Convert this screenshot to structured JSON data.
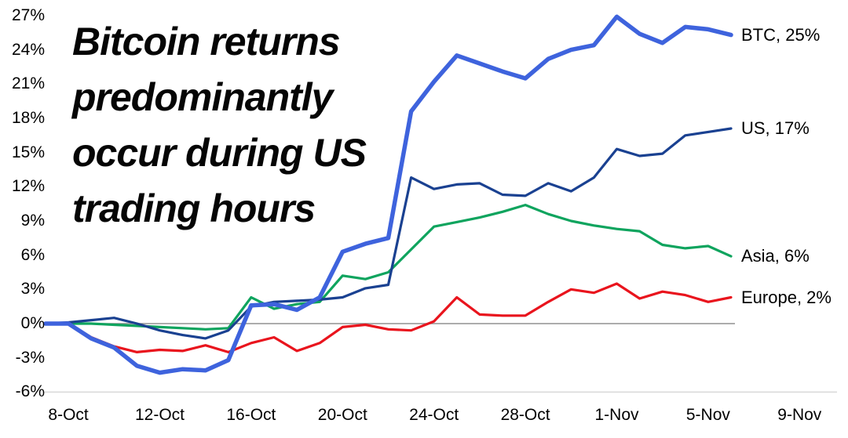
{
  "page": {
    "background": "#ffffff"
  },
  "title": {
    "lines": [
      "Bitcoin returns",
      "predominantly",
      "occur during US",
      "trading hours"
    ],
    "full_text": "Bitcoin returns predominantly occur during US trading hours",
    "color": "#050505"
  },
  "chart_data": {
    "type": "line",
    "title": "Bitcoin returns predominantly occur during US trading hours",
    "xlabel": "",
    "ylabel": "",
    "ylim": [
      -6,
      27
    ],
    "grid": {
      "zero_line": true,
      "bottom_line": true,
      "vertical_gridlines": false
    },
    "legend_position": "right-end-labels",
    "y_tick_labels": [
      "27%",
      "24%",
      "21%",
      "18%",
      "15%",
      "12%",
      "9%",
      "6%",
      "3%",
      "0%",
      "-3%",
      "-6%"
    ],
    "y_tick_values": [
      27,
      24,
      21,
      18,
      15,
      12,
      9,
      6,
      3,
      0,
      -3,
      -6
    ],
    "x_tick_labels": [
      "8-Oct",
      "12-Oct",
      "16-Oct",
      "20-Oct",
      "24-Oct",
      "28-Oct",
      "1-Nov",
      "5-Nov",
      "9-Nov"
    ],
    "x_labels": [
      "7-Oct",
      "8-Oct",
      "9-Oct",
      "10-Oct",
      "11-Oct",
      "12-Oct",
      "13-Oct",
      "14-Oct",
      "15-Oct",
      "16-Oct",
      "17-Oct",
      "18-Oct",
      "19-Oct",
      "20-Oct",
      "21-Oct",
      "22-Oct",
      "23-Oct",
      "24-Oct",
      "25-Oct",
      "26-Oct",
      "27-Oct",
      "28-Oct",
      "29-Oct",
      "30-Oct",
      "31-Oct",
      "1-Nov",
      "2-Nov",
      "3-Nov",
      "4-Nov",
      "5-Nov",
      "6-Nov"
    ],
    "axis_colors": {
      "zero_line": "#909090",
      "bottom_line": "#dcdcdc"
    },
    "series": [
      {
        "name": "BTC",
        "end_label": "BTC, 25%",
        "color": "#3e63dd",
        "stroke_width": 5.5,
        "values": [
          0,
          0,
          -1.3,
          -2.1,
          -3.7,
          -4.3,
          -4.0,
          -4.1,
          -3.2,
          1.6,
          1.7,
          1.2,
          2.3,
          6.3,
          7.0,
          7.5,
          18.6,
          21.2,
          23.5,
          22.8,
          22.1,
          21.5,
          23.2,
          24.0,
          24.4,
          26.9,
          25.4,
          24.6,
          26.0,
          25.8,
          25.3
        ]
      },
      {
        "name": "US",
        "end_label": "US, 17%",
        "color": "#1a4191",
        "stroke_width": 3.2,
        "values": [
          0,
          0.1,
          0.3,
          0.5,
          0,
          -0.6,
          -1.0,
          -1.3,
          -0.6,
          1.5,
          1.9,
          2.0,
          2.1,
          2.3,
          3.1,
          3.4,
          12.8,
          11.8,
          12.2,
          12.3,
          11.3,
          11.2,
          12.3,
          11.6,
          12.8,
          15.3,
          14.7,
          14.9,
          16.5,
          16.8,
          17.1
        ]
      },
      {
        "name": "Asia",
        "end_label": "Asia, 6%",
        "color": "#0fa45e",
        "stroke_width": 3.2,
        "values": [
          0,
          0,
          0,
          -0.1,
          -0.2,
          -0.3,
          -0.4,
          -0.5,
          -0.4,
          2.3,
          1.3,
          1.7,
          1.9,
          4.2,
          3.9,
          4.5,
          6.5,
          8.5,
          8.9,
          9.3,
          9.8,
          10.4,
          9.6,
          9.0,
          8.6,
          8.3,
          8.1,
          6.9,
          6.6,
          6.8,
          5.9
        ]
      },
      {
        "name": "Europe",
        "end_label": "Europe, 2%",
        "color": "#e9141d",
        "stroke_width": 3.2,
        "values": [
          0,
          0,
          -1.2,
          -2.0,
          -2.5,
          -2.3,
          -2.4,
          -1.9,
          -2.5,
          -1.7,
          -1.2,
          -2.4,
          -1.7,
          -0.3,
          -0.1,
          -0.5,
          -0.6,
          0.2,
          2.3,
          0.8,
          0.7,
          0.7,
          1.9,
          3.0,
          2.7,
          3.5,
          2.2,
          2.8,
          2.5,
          1.9,
          2.3
        ]
      }
    ]
  }
}
